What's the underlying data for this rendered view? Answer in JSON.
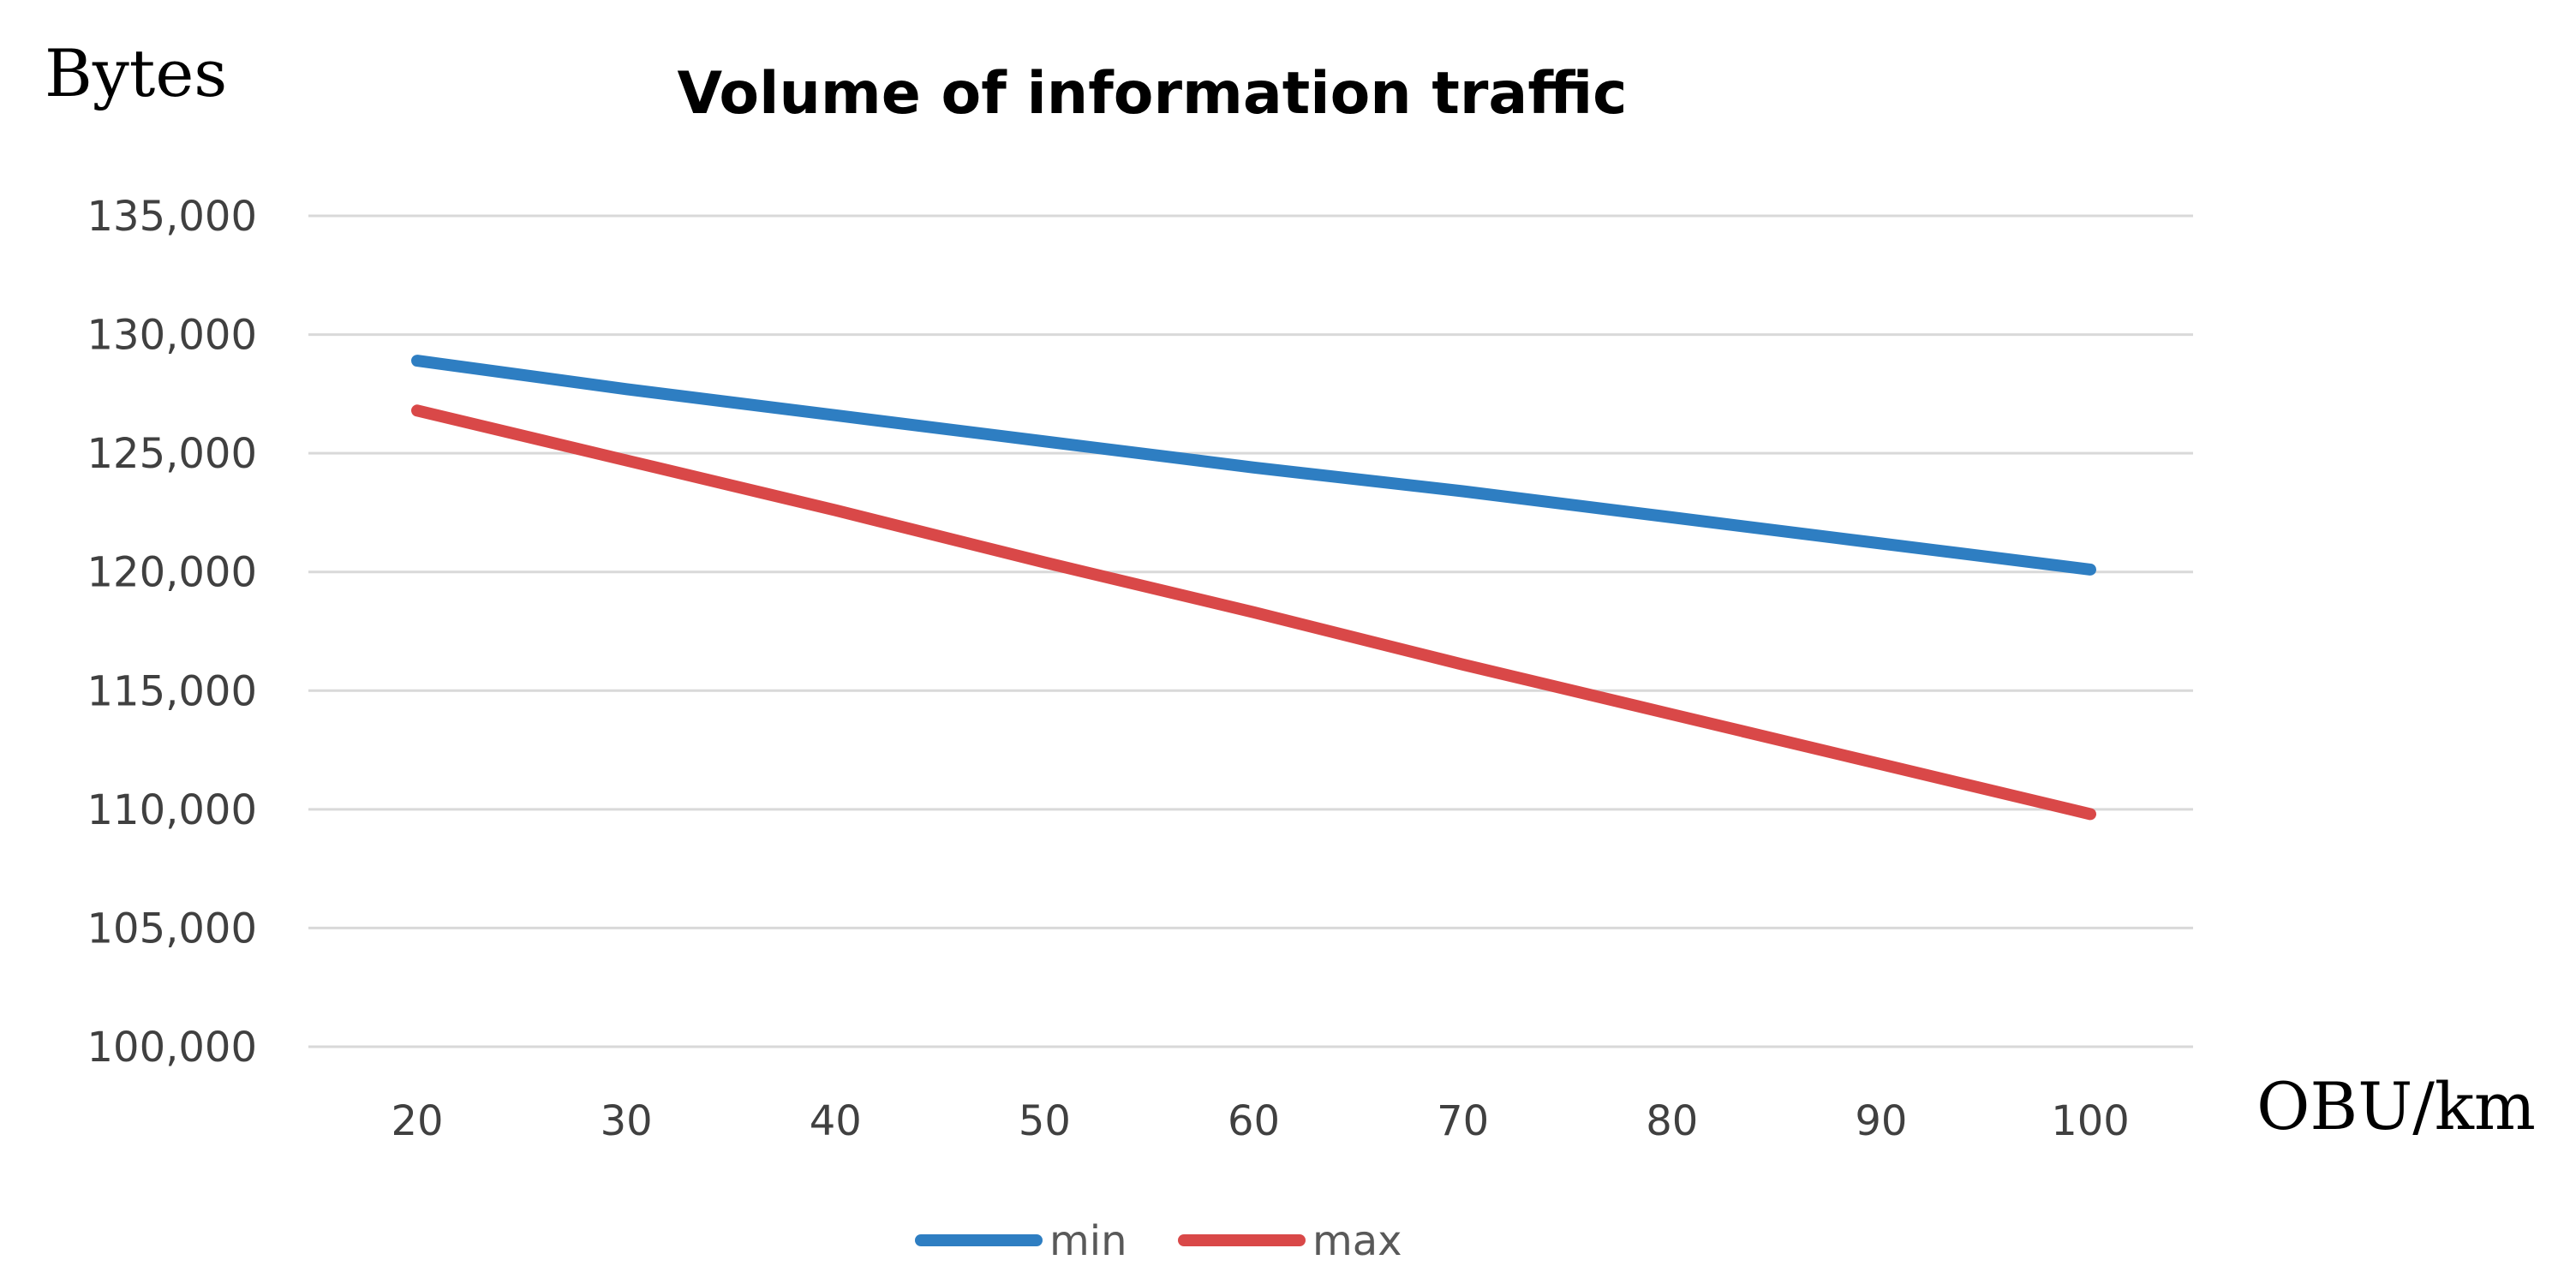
{
  "chart_data": {
    "type": "line",
    "title": "Volume of information traffic",
    "xlabel": "OBU/km",
    "ylabel": "Bytes",
    "x": [
      20,
      30,
      40,
      50,
      60,
      70,
      80,
      90,
      100
    ],
    "x_tick_labels": [
      "20",
      "30",
      "40",
      "50",
      "60",
      "70",
      "80",
      "90",
      "100"
    ],
    "ylim": [
      100000,
      135000
    ],
    "y_ticks": [
      100000,
      105000,
      110000,
      115000,
      120000,
      125000,
      130000,
      135000
    ],
    "y_tick_labels": [
      "100,000",
      "105,000",
      "110,000",
      "115,000",
      "120,000",
      "125,000",
      "130,000",
      "135,000"
    ],
    "grid": true,
    "legend_position": "bottom",
    "series": [
      {
        "name": "min",
        "color": "#2E7EC2",
        "values": [
          128900,
          127700,
          126600,
          125500,
          124400,
          123400,
          122300,
          121200,
          120100
        ]
      },
      {
        "name": "max",
        "color": "#D94848",
        "values": [
          126800,
          124700,
          122600,
          120400,
          118300,
          116100,
          114000,
          111900,
          109800
        ]
      }
    ]
  }
}
